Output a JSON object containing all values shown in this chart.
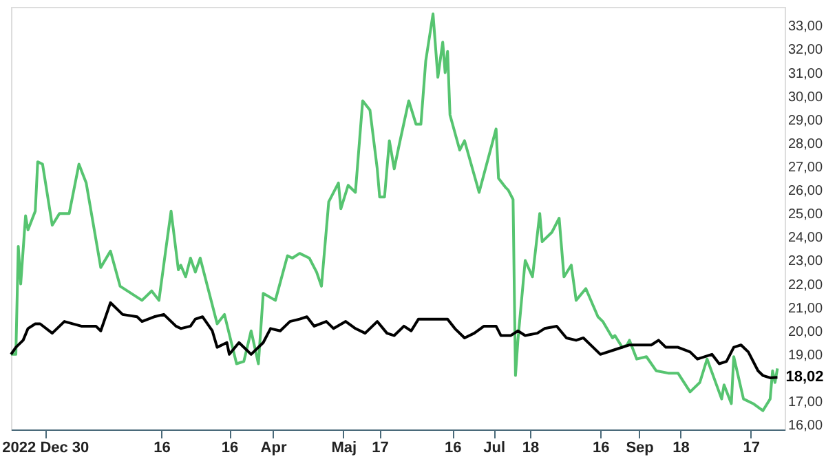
{
  "chart_data": {
    "type": "line",
    "xlim": [
      "2022-12-16",
      "2023-10-31"
    ],
    "ylim": [
      15.8,
      33.8
    ],
    "xticks": [
      {
        "value": "2022-12-30",
        "label": "2022 Dec 30"
      },
      {
        "value": "2023-02-16",
        "label": "16"
      },
      {
        "value": "2023-03-16",
        "label": "16"
      },
      {
        "value": "2023-04-03",
        "label": "Apr"
      },
      {
        "value": "2023-05-02",
        "label": "Maj"
      },
      {
        "value": "2023-05-17",
        "label": "17"
      },
      {
        "value": "2023-06-16",
        "label": "16"
      },
      {
        "value": "2023-07-03",
        "label": "Jul"
      },
      {
        "value": "2023-07-18",
        "label": "18"
      },
      {
        "value": "2023-08-16",
        "label": "16"
      },
      {
        "value": "2023-09-01",
        "label": "Sep"
      },
      {
        "value": "2023-09-18",
        "label": "18"
      },
      {
        "value": "2023-10-17",
        "label": "17"
      }
    ],
    "yticks": [
      {
        "value": 16,
        "label": "16,00"
      },
      {
        "value": 17,
        "label": "17,00"
      },
      {
        "value": 19,
        "label": "19,00"
      },
      {
        "value": 20,
        "label": "20,00"
      },
      {
        "value": 21,
        "label": "21,00"
      },
      {
        "value": 22,
        "label": "22,00"
      },
      {
        "value": 23,
        "label": "23,00"
      },
      {
        "value": 24,
        "label": "24,00"
      },
      {
        "value": 25,
        "label": "25,00"
      },
      {
        "value": 26,
        "label": "26,00"
      },
      {
        "value": 27,
        "label": "27,00"
      },
      {
        "value": 28,
        "label": "28,00"
      },
      {
        "value": 29,
        "label": "29,00"
      },
      {
        "value": 30,
        "label": "30,00"
      },
      {
        "value": 31,
        "label": "31,00"
      },
      {
        "value": 32,
        "label": "32,00"
      },
      {
        "value": 33,
        "label": "33,00"
      }
    ],
    "series": [
      {
        "color": "#56c470",
        "x": [
          "2022-12-16",
          "2022-12-18",
          "2022-12-19",
          "2022-12-20",
          "2022-12-22",
          "2022-12-23",
          "2022-12-26",
          "2022-12-27",
          "2022-12-29",
          "2023-01-02",
          "2023-01-05",
          "2023-01-09",
          "2023-01-13",
          "2023-01-16",
          "2023-01-22",
          "2023-01-26",
          "2023-01-30",
          "2023-02-08",
          "2023-02-12",
          "2023-02-15",
          "2023-02-18",
          "2023-02-20",
          "2023-02-23",
          "2023-02-24",
          "2023-02-26",
          "2023-02-28",
          "2023-03-02",
          "2023-03-04",
          "2023-03-07",
          "2023-03-11",
          "2023-03-14",
          "2023-03-19",
          "2023-03-22",
          "2023-03-25",
          "2023-03-28",
          "2023-03-30",
          "2023-04-04",
          "2023-04-09",
          "2023-04-11",
          "2023-04-14",
          "2023-04-18",
          "2023-04-21",
          "2023-04-23",
          "2023-04-26",
          "2023-04-30",
          "2023-05-01",
          "2023-05-04",
          "2023-05-07",
          "2023-05-10",
          "2023-05-13",
          "2023-05-16",
          "2023-05-17",
          "2023-05-19",
          "2023-05-21",
          "2023-05-23",
          "2023-05-25",
          "2023-05-29",
          "2023-06-01",
          "2023-06-03",
          "2023-06-05",
          "2023-06-08",
          "2023-06-10",
          "2023-06-12",
          "2023-06-13",
          "2023-06-14",
          "2023-06-15",
          "2023-06-19",
          "2023-06-21",
          "2023-06-27",
          "2023-07-04",
          "2023-07-05",
          "2023-07-08",
          "2023-07-09",
          "2023-07-11",
          "2023-07-12",
          "2023-07-13",
          "2023-07-16",
          "2023-07-19",
          "2023-07-22",
          "2023-07-23",
          "2023-07-27",
          "2023-07-30",
          "2023-08-01",
          "2023-08-04",
          "2023-08-06",
          "2023-08-10",
          "2023-08-15",
          "2023-08-17",
          "2023-08-21",
          "2023-08-22",
          "2023-08-25",
          "2023-08-27",
          "2023-08-28",
          "2023-08-31",
          "2023-09-04",
          "2023-09-08",
          "2023-09-13",
          "2023-09-17",
          "2023-09-22",
          "2023-09-26",
          "2023-09-29",
          "2023-10-05",
          "2023-10-06",
          "2023-10-09",
          "2023-10-10",
          "2023-10-14",
          "2023-10-18",
          "2023-10-22",
          "2023-10-25",
          "2023-10-26",
          "2023-10-27",
          "2023-10-28"
        ],
        "values": [
          19.0,
          19.0,
          23.6,
          22.0,
          24.9,
          24.3,
          25.1,
          27.2,
          27.1,
          24.5,
          25.0,
          25.0,
          27.1,
          26.3,
          22.7,
          23.4,
          21.9,
          21.3,
          21.7,
          21.3,
          23.6,
          25.1,
          22.6,
          22.8,
          22.3,
          23.1,
          22.5,
          23.1,
          21.9,
          20.3,
          20.7,
          18.6,
          18.7,
          20.0,
          18.6,
          21.6,
          21.3,
          23.2,
          23.1,
          23.3,
          23.1,
          22.5,
          21.9,
          25.5,
          26.3,
          25.2,
          26.2,
          25.9,
          29.8,
          29.4,
          26.9,
          25.7,
          25.7,
          28.1,
          26.9,
          27.9,
          29.8,
          28.8,
          28.8,
          31.5,
          33.5,
          30.8,
          32.3,
          31.0,
          31.9,
          29.2,
          27.7,
          28.1,
          25.9,
          28.6,
          26.5,
          26.1,
          26.0,
          25.6,
          18.1,
          19.6,
          23.0,
          22.3,
          25.0,
          23.8,
          24.2,
          24.8,
          22.3,
          22.8,
          21.3,
          21.8,
          20.6,
          20.4,
          19.7,
          19.8,
          19.3,
          19.4,
          19.6,
          18.8,
          18.9,
          18.3,
          18.2,
          18.2,
          17.4,
          17.8,
          18.8,
          17.1,
          17.7,
          16.9,
          18.9,
          17.1,
          16.9,
          16.6,
          17.1,
          18.3,
          17.8,
          18.4
        ]
      },
      {
        "color": "#000000",
        "x": [
          "2022-12-16",
          "2022-12-18",
          "2022-12-21",
          "2022-12-23",
          "2022-12-26",
          "2022-12-28",
          "2023-01-02",
          "2023-01-07",
          "2023-01-14",
          "2023-01-20",
          "2023-01-22",
          "2023-01-26",
          "2023-01-31",
          "2023-02-06",
          "2023-02-08",
          "2023-02-13",
          "2023-02-17",
          "2023-02-22",
          "2023-02-24",
          "2023-02-28",
          "2023-03-02",
          "2023-03-05",
          "2023-03-09",
          "2023-03-11",
          "2023-03-15",
          "2023-03-16",
          "2023-03-20",
          "2023-03-25",
          "2023-03-30",
          "2023-04-02",
          "2023-04-06",
          "2023-04-10",
          "2023-04-14",
          "2023-04-17",
          "2023-04-20",
          "2023-04-25",
          "2023-04-28",
          "2023-05-03",
          "2023-05-07",
          "2023-05-11",
          "2023-05-16",
          "2023-05-20",
          "2023-05-23",
          "2023-05-27",
          "2023-05-30",
          "2023-06-02",
          "2023-06-07",
          "2023-06-12",
          "2023-06-14",
          "2023-06-17",
          "2023-06-21",
          "2023-06-25",
          "2023-06-29",
          "2023-07-04",
          "2023-07-06",
          "2023-07-10",
          "2023-07-13",
          "2023-07-16",
          "2023-07-21",
          "2023-07-24",
          "2023-07-29",
          "2023-08-02",
          "2023-08-06",
          "2023-08-09",
          "2023-08-13",
          "2023-08-16",
          "2023-08-22",
          "2023-08-28",
          "2023-09-02",
          "2023-09-06",
          "2023-09-09",
          "2023-09-12",
          "2023-09-17",
          "2023-09-22",
          "2023-09-25",
          "2023-10-01",
          "2023-10-04",
          "2023-10-07",
          "2023-10-10",
          "2023-10-13",
          "2023-10-16",
          "2023-10-20",
          "2023-10-22",
          "2023-10-25",
          "2023-10-28"
        ],
        "values": [
          19.0,
          19.3,
          19.6,
          20.1,
          20.3,
          20.3,
          19.9,
          20.4,
          20.2,
          20.2,
          20.0,
          21.2,
          20.7,
          20.6,
          20.4,
          20.6,
          20.7,
          20.2,
          20.1,
          20.2,
          20.5,
          20.6,
          20.0,
          19.3,
          19.5,
          19.0,
          19.5,
          19.0,
          19.5,
          20.1,
          20.0,
          20.4,
          20.5,
          20.6,
          20.2,
          20.4,
          20.1,
          20.4,
          20.1,
          19.9,
          20.4,
          19.9,
          19.8,
          20.2,
          20.0,
          20.5,
          20.5,
          20.5,
          20.5,
          20.1,
          19.7,
          19.9,
          20.2,
          20.2,
          19.8,
          19.8,
          20.0,
          19.8,
          19.9,
          20.1,
          20.2,
          19.7,
          19.6,
          19.7,
          19.3,
          19.0,
          19.2,
          19.4,
          19.4,
          19.4,
          19.6,
          19.3,
          19.3,
          19.1,
          18.8,
          19.0,
          18.6,
          18.7,
          19.3,
          19.4,
          19.1,
          18.3,
          18.1,
          18.0,
          18.02
        ]
      }
    ],
    "annotations": [
      {
        "text": "18,02",
        "x": "2023-10-28",
        "y": 18.02
      }
    ]
  }
}
